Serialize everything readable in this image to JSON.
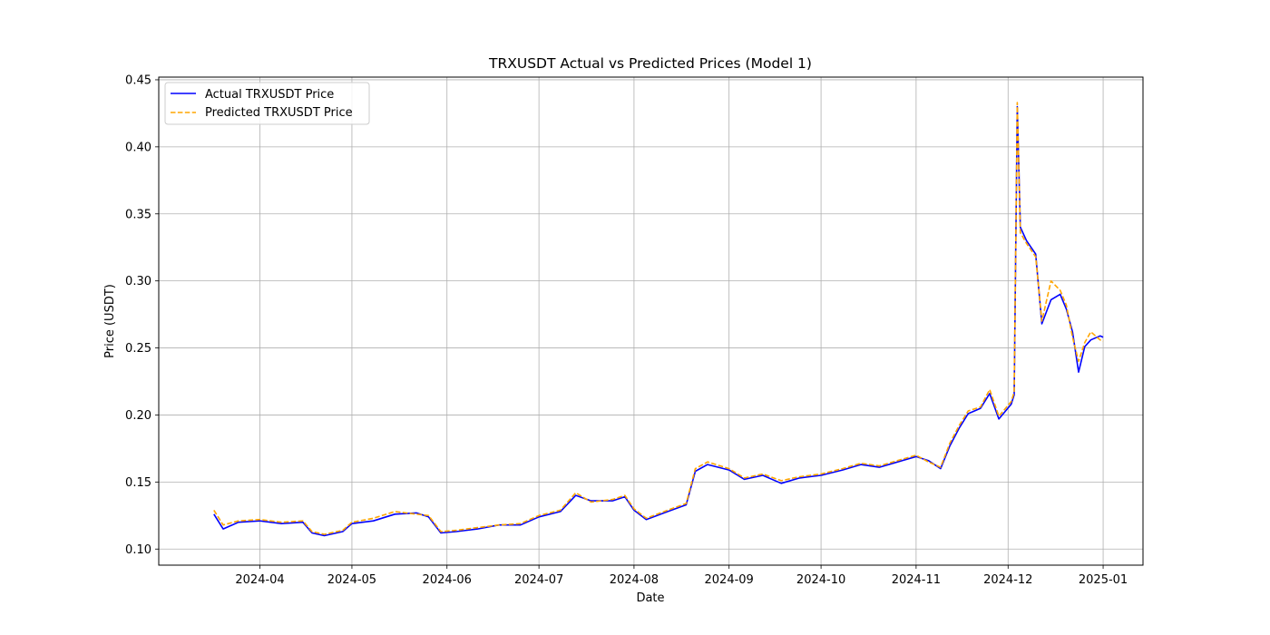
{
  "chart_data": {
    "type": "line",
    "title": "TRXUSDT Actual vs Predicted Prices (Model 1)",
    "xlabel": "Date",
    "ylabel": "Price (USDT)",
    "xlim": [
      "2024-02-28",
      "2025-01-14"
    ],
    "ylim": [
      0.088,
      0.452
    ],
    "x_ticks": [
      "2024-04-01",
      "2024-05-01",
      "2024-06-01",
      "2024-07-01",
      "2024-08-01",
      "2024-09-01",
      "2024-10-01",
      "2024-11-01",
      "2024-12-01",
      "2025-01-01"
    ],
    "x_tick_labels": [
      "2024-04",
      "2024-05",
      "2024-06",
      "2024-07",
      "2024-08",
      "2024-09",
      "2024-10",
      "2024-11",
      "2024-12",
      "2025-01"
    ],
    "y_ticks": [
      0.1,
      0.15,
      0.2,
      0.25,
      0.3,
      0.35,
      0.4,
      0.45
    ],
    "y_tick_labels": [
      "0.10",
      "0.15",
      "0.20",
      "0.25",
      "0.30",
      "0.35",
      "0.40",
      "0.45"
    ],
    "grid": true,
    "legend_position": "top-left",
    "series": [
      {
        "name": "Actual TRXUSDT Price",
        "color": "#0000ff",
        "style": "solid",
        "points": [
          [
            "2024-03-17",
            0.126
          ],
          [
            "2024-03-20",
            0.115
          ],
          [
            "2024-03-25",
            0.12
          ],
          [
            "2024-04-01",
            0.121
          ],
          [
            "2024-04-08",
            0.119
          ],
          [
            "2024-04-15",
            0.12
          ],
          [
            "2024-04-18",
            0.112
          ],
          [
            "2024-04-22",
            0.11
          ],
          [
            "2024-04-28",
            0.113
          ],
          [
            "2024-05-01",
            0.119
          ],
          [
            "2024-05-08",
            0.121
          ],
          [
            "2024-05-15",
            0.126
          ],
          [
            "2024-05-22",
            0.127
          ],
          [
            "2024-05-26",
            0.124
          ],
          [
            "2024-05-30",
            0.112
          ],
          [
            "2024-06-04",
            0.113
          ],
          [
            "2024-06-11",
            0.115
          ],
          [
            "2024-06-18",
            0.118
          ],
          [
            "2024-06-25",
            0.118
          ],
          [
            "2024-07-01",
            0.124
          ],
          [
            "2024-07-08",
            0.128
          ],
          [
            "2024-07-13",
            0.14
          ],
          [
            "2024-07-18",
            0.136
          ],
          [
            "2024-07-25",
            0.136
          ],
          [
            "2024-07-29",
            0.139
          ],
          [
            "2024-08-01",
            0.129
          ],
          [
            "2024-08-05",
            0.122
          ],
          [
            "2024-08-12",
            0.128
          ],
          [
            "2024-08-18",
            0.133
          ],
          [
            "2024-08-21",
            0.158
          ],
          [
            "2024-08-25",
            0.163
          ],
          [
            "2024-09-01",
            0.159
          ],
          [
            "2024-09-06",
            0.152
          ],
          [
            "2024-09-12",
            0.155
          ],
          [
            "2024-09-18",
            0.149
          ],
          [
            "2024-09-24",
            0.153
          ],
          [
            "2024-10-01",
            0.155
          ],
          [
            "2024-10-08",
            0.159
          ],
          [
            "2024-10-14",
            0.163
          ],
          [
            "2024-10-20",
            0.161
          ],
          [
            "2024-10-26",
            0.165
          ],
          [
            "2024-11-01",
            0.169
          ],
          [
            "2024-11-05",
            0.166
          ],
          [
            "2024-11-09",
            0.16
          ],
          [
            "2024-11-12",
            0.177
          ],
          [
            "2024-11-15",
            0.19
          ],
          [
            "2024-11-18",
            0.201
          ],
          [
            "2024-11-22",
            0.205
          ],
          [
            "2024-11-25",
            0.216
          ],
          [
            "2024-11-28",
            0.197
          ],
          [
            "2024-12-02",
            0.208
          ],
          [
            "2024-12-03",
            0.215
          ],
          [
            "2024-12-04",
            0.43
          ],
          [
            "2024-12-05",
            0.34
          ],
          [
            "2024-12-07",
            0.33
          ],
          [
            "2024-12-10",
            0.32
          ],
          [
            "2024-12-12",
            0.268
          ],
          [
            "2024-12-15",
            0.286
          ],
          [
            "2024-12-18",
            0.29
          ],
          [
            "2024-12-20",
            0.279
          ],
          [
            "2024-12-22",
            0.262
          ],
          [
            "2024-12-24",
            0.232
          ],
          [
            "2024-12-26",
            0.251
          ],
          [
            "2024-12-28",
            0.256
          ],
          [
            "2024-12-31",
            0.259
          ],
          [
            "2025-01-01",
            0.258
          ]
        ]
      },
      {
        "name": "Predicted TRXUSDT Price",
        "color": "#ffa500",
        "style": "dashed",
        "points": [
          [
            "2024-03-17",
            0.129
          ],
          [
            "2024-03-20",
            0.118
          ],
          [
            "2024-03-25",
            0.121
          ],
          [
            "2024-04-01",
            0.122
          ],
          [
            "2024-04-08",
            0.12
          ],
          [
            "2024-04-15",
            0.121
          ],
          [
            "2024-04-18",
            0.113
          ],
          [
            "2024-04-22",
            0.111
          ],
          [
            "2024-04-28",
            0.114
          ],
          [
            "2024-05-01",
            0.12
          ],
          [
            "2024-05-08",
            0.123
          ],
          [
            "2024-05-15",
            0.128
          ],
          [
            "2024-05-22",
            0.126
          ],
          [
            "2024-05-26",
            0.125
          ],
          [
            "2024-05-30",
            0.113
          ],
          [
            "2024-06-04",
            0.114
          ],
          [
            "2024-06-11",
            0.116
          ],
          [
            "2024-06-18",
            0.118
          ],
          [
            "2024-06-25",
            0.119
          ],
          [
            "2024-07-01",
            0.125
          ],
          [
            "2024-07-08",
            0.129
          ],
          [
            "2024-07-13",
            0.142
          ],
          [
            "2024-07-18",
            0.135
          ],
          [
            "2024-07-25",
            0.137
          ],
          [
            "2024-07-29",
            0.14
          ],
          [
            "2024-08-01",
            0.13
          ],
          [
            "2024-08-05",
            0.123
          ],
          [
            "2024-08-12",
            0.129
          ],
          [
            "2024-08-18",
            0.134
          ],
          [
            "2024-08-21",
            0.16
          ],
          [
            "2024-08-25",
            0.165
          ],
          [
            "2024-09-01",
            0.16
          ],
          [
            "2024-09-06",
            0.153
          ],
          [
            "2024-09-12",
            0.156
          ],
          [
            "2024-09-18",
            0.151
          ],
          [
            "2024-09-24",
            0.154
          ],
          [
            "2024-10-01",
            0.156
          ],
          [
            "2024-10-08",
            0.16
          ],
          [
            "2024-10-14",
            0.164
          ],
          [
            "2024-10-20",
            0.162
          ],
          [
            "2024-10-26",
            0.166
          ],
          [
            "2024-11-01",
            0.17
          ],
          [
            "2024-11-05",
            0.165
          ],
          [
            "2024-11-09",
            0.161
          ],
          [
            "2024-11-12",
            0.179
          ],
          [
            "2024-11-15",
            0.192
          ],
          [
            "2024-11-18",
            0.203
          ],
          [
            "2024-11-22",
            0.206
          ],
          [
            "2024-11-25",
            0.219
          ],
          [
            "2024-11-28",
            0.199
          ],
          [
            "2024-12-02",
            0.21
          ],
          [
            "2024-12-03",
            0.217
          ],
          [
            "2024-12-04",
            0.433
          ],
          [
            "2024-12-05",
            0.336
          ],
          [
            "2024-12-07",
            0.328
          ],
          [
            "2024-12-10",
            0.318
          ],
          [
            "2024-12-12",
            0.27
          ],
          [
            "2024-12-15",
            0.3
          ],
          [
            "2024-12-18",
            0.293
          ],
          [
            "2024-12-20",
            0.282
          ],
          [
            "2024-12-22",
            0.258
          ],
          [
            "2024-12-24",
            0.24
          ],
          [
            "2024-12-26",
            0.254
          ],
          [
            "2024-12-28",
            0.262
          ],
          [
            "2024-12-31",
            0.256
          ],
          [
            "2025-01-01",
            0.255
          ]
        ]
      }
    ]
  }
}
